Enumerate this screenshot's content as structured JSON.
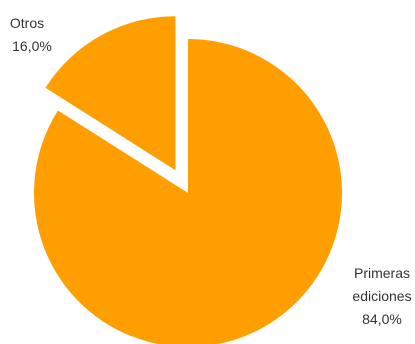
{
  "chart_data": {
    "type": "pie",
    "title": "",
    "slices": [
      {
        "label": [
          "Primeras",
          "ediciones"
        ],
        "value": 84.0,
        "display": "84,0%",
        "color": "#FF9E00",
        "exploded": false
      },
      {
        "label": [
          "Otros"
        ],
        "value": 16.0,
        "display": "16,0%",
        "color": "#FF9E00",
        "exploded": true
      }
    ],
    "legend": "none",
    "start": "top",
    "direction": "clockwise"
  }
}
